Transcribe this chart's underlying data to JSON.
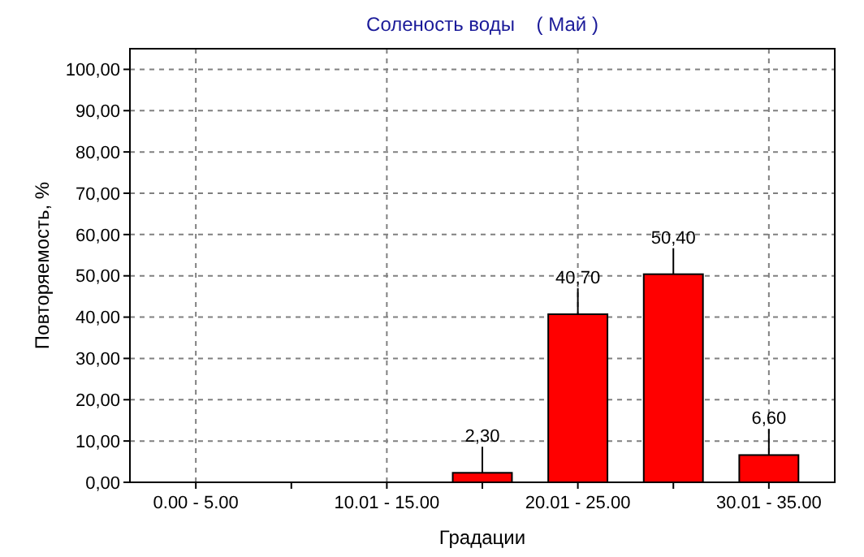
{
  "chart_data": {
    "type": "bar",
    "title": "Соленость воды    ( Май )",
    "xlabel": "Градации",
    "ylabel": "Повторяемость, %",
    "categories": [
      "0.00 - 5.00",
      null,
      "10.01 - 15.00",
      null,
      "20.01 - 25.00",
      null,
      "30.01 - 35.00"
    ],
    "values": [
      0,
      0,
      0,
      2.3,
      40.7,
      50.4,
      6.6
    ],
    "value_labels": [
      null,
      null,
      null,
      "2,30",
      "40,70",
      "50,40",
      "6,60"
    ],
    "color": "#ff0000",
    "ylim": [
      0,
      105
    ],
    "yticks": [
      {
        "value": 0,
        "label": "0,00"
      },
      {
        "value": 10,
        "label": "10,00"
      },
      {
        "value": 20,
        "label": "20,00"
      },
      {
        "value": 30,
        "label": "30,00"
      },
      {
        "value": 40,
        "label": "40,00"
      },
      {
        "value": 50,
        "label": "50,00"
      },
      {
        "value": 60,
        "label": "60,00"
      },
      {
        "value": 70,
        "label": "70,00"
      },
      {
        "value": 80,
        "label": "80,00"
      },
      {
        "value": 90,
        "label": "90,00"
      },
      {
        "value": 100,
        "label": "100,00"
      }
    ],
    "grid": true
  }
}
